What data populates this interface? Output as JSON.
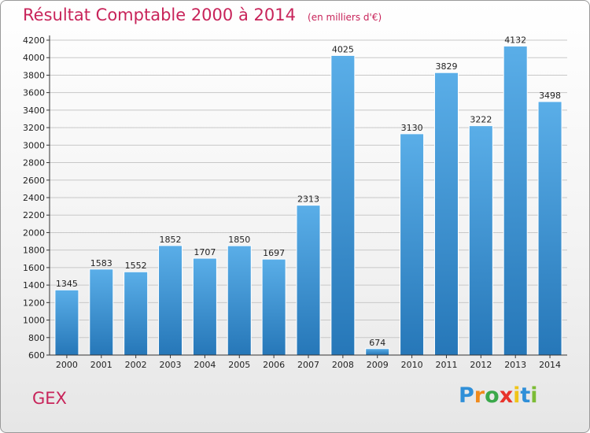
{
  "header": {
    "title": "Résultat Comptable 2000 à 2014",
    "subtitle": "(en milliers d'€)"
  },
  "footer": {
    "place": "GEX",
    "logo_letters": [
      "P",
      "r",
      "o",
      "x",
      "i",
      "t",
      "i"
    ],
    "logo_colors": [
      "#2f8fd8",
      "#f08a1c",
      "#3aa84a",
      "#e8332a",
      "#f0c419",
      "#2f8fd8",
      "#7cbc35"
    ]
  },
  "colors": {
    "bar_top": "#5aaee8",
    "bar_bottom": "#2677b8",
    "grid": "#c8c8c8",
    "accent": "#c8245a"
  },
  "chart_data": {
    "type": "bar",
    "categories": [
      "2000",
      "2001",
      "2002",
      "2003",
      "2004",
      "2005",
      "2006",
      "2007",
      "2008",
      "2009",
      "2010",
      "2011",
      "2012",
      "2013",
      "2014"
    ],
    "values": [
      1345,
      1583,
      1552,
      1852,
      1707,
      1850,
      1697,
      2313,
      4025,
      674,
      3130,
      3829,
      3222,
      4132,
      3498
    ],
    "value_labels": [
      "1345",
      "1583",
      "1552",
      "1852",
      "1707",
      "1850",
      "1697",
      "2313",
      "4025",
      "674",
      "3130",
      "3829",
      "3222",
      "4132",
      "3498"
    ],
    "y_ticks": [
      "600",
      "800",
      "1000",
      "1200",
      "1400",
      "1600",
      "1800",
      "2000",
      "2200",
      "2400",
      "2600",
      "2800",
      "3000",
      "3200",
      "3400",
      "3600",
      "3800",
      "4000",
      "4200"
    ],
    "ylim": [
      600,
      4200
    ],
    "grid": true
  }
}
